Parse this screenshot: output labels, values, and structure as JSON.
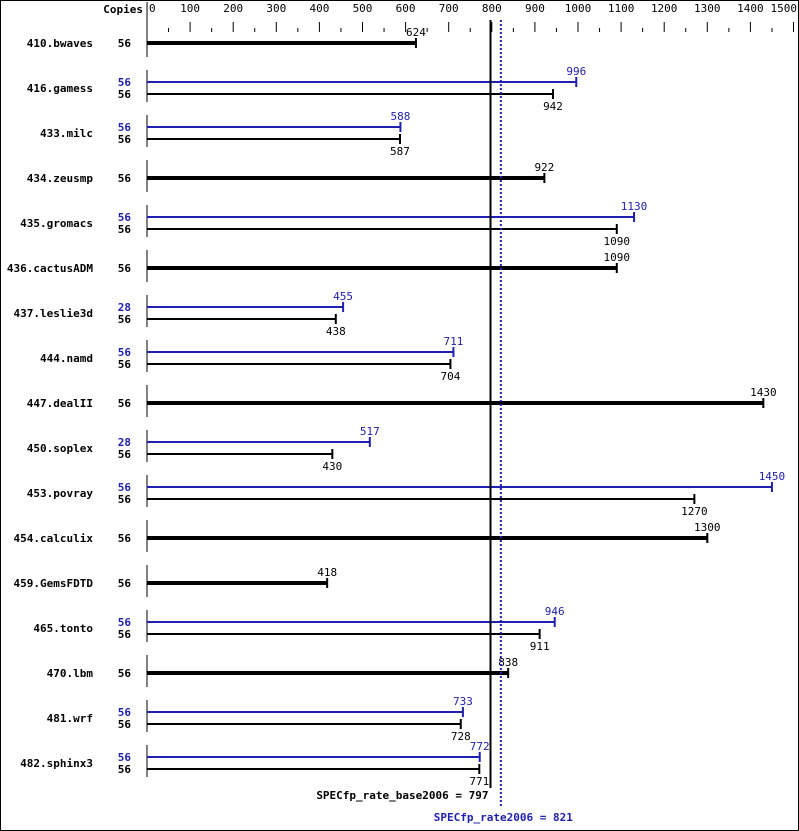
{
  "chart_data": {
    "type": "bar",
    "orientation": "horizontal",
    "column_header": "Copies",
    "xlim": [
      0,
      1500
    ],
    "ticks": [
      0,
      100,
      200,
      300,
      400,
      500,
      600,
      700,
      800,
      900,
      1000,
      1100,
      1200,
      1300,
      1400,
      1500
    ],
    "colors": {
      "base": "#000000",
      "peak": "#2020b0"
    },
    "benchmarks": [
      {
        "name": "410.bwaves",
        "base_copies": "56",
        "base": 624
      },
      {
        "name": "416.gamess",
        "peak_copies": "56",
        "peak": 996,
        "base_copies": "56",
        "base": 942
      },
      {
        "name": "433.milc",
        "peak_copies": "56",
        "peak": 588,
        "base_copies": "56",
        "base": 587
      },
      {
        "name": "434.zeusmp",
        "base_copies": "56",
        "base": 922
      },
      {
        "name": "435.gromacs",
        "peak_copies": "56",
        "peak": 1130,
        "base_copies": "56",
        "base": 1090
      },
      {
        "name": "436.cactusADM",
        "base_copies": "56",
        "base": 1090
      },
      {
        "name": "437.leslie3d",
        "peak_copies": "28",
        "peak": 455,
        "base_copies": "56",
        "base": 438
      },
      {
        "name": "444.namd",
        "peak_copies": "56",
        "peak": 711,
        "base_copies": "56",
        "base": 704
      },
      {
        "name": "447.dealII",
        "base_copies": "56",
        "base": 1430
      },
      {
        "name": "450.soplex",
        "peak_copies": "28",
        "peak": 517,
        "base_copies": "56",
        "base": 430
      },
      {
        "name": "453.povray",
        "peak_copies": "56",
        "peak": 1450,
        "base_copies": "56",
        "base": 1270
      },
      {
        "name": "454.calculix",
        "base_copies": "56",
        "base": 1300
      },
      {
        "name": "459.GemsFDTD",
        "base_copies": "56",
        "base": 418
      },
      {
        "name": "465.tonto",
        "peak_copies": "56",
        "peak": 946,
        "base_copies": "56",
        "base": 911
      },
      {
        "name": "470.lbm",
        "base_copies": "56",
        "base": 838
      },
      {
        "name": "481.wrf",
        "peak_copies": "56",
        "peak": 733,
        "base_copies": "56",
        "base": 728
      },
      {
        "name": "482.sphinx3",
        "peak_copies": "56",
        "peak": 772,
        "base_copies": "56",
        "base": 771
      }
    ],
    "base_metric": {
      "label": "SPECfp_rate_base2006 = 797",
      "value": 797
    },
    "peak_metric": {
      "label": "SPECfp_rate2006 = 821",
      "value": 821
    }
  }
}
